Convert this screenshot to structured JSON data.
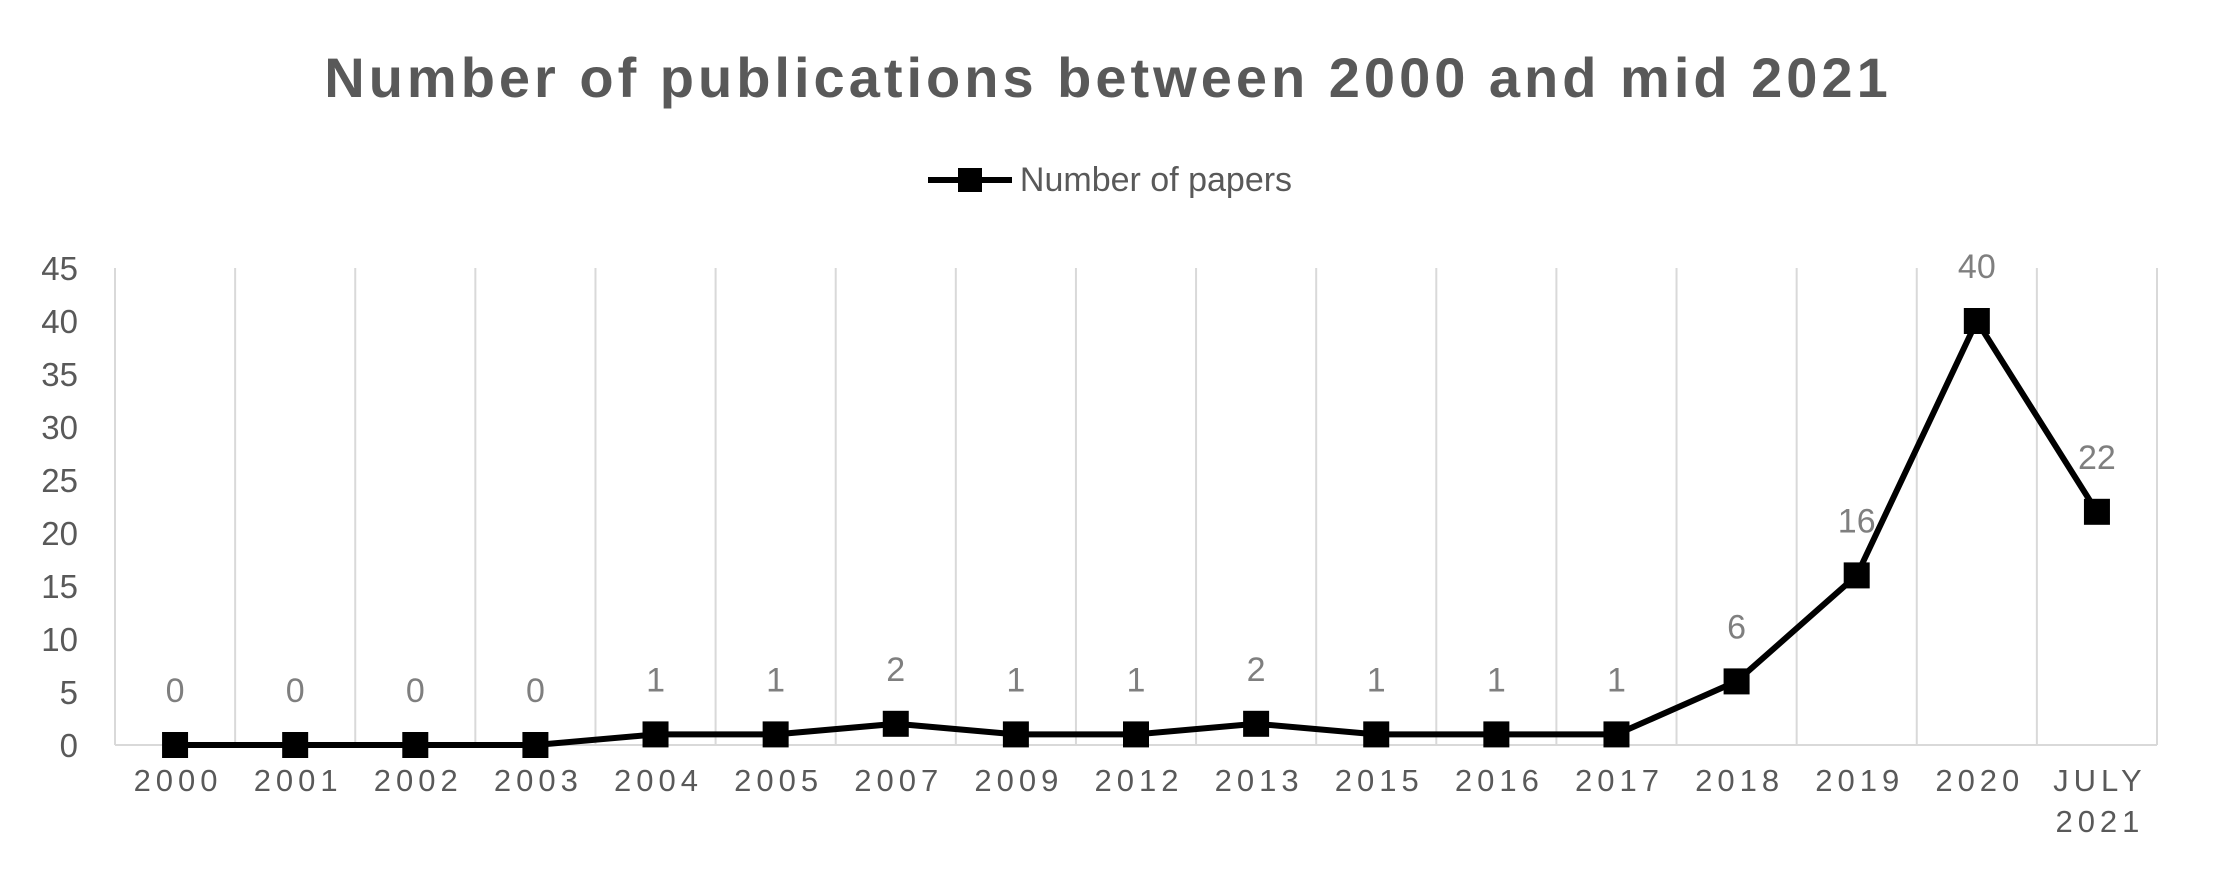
{
  "chart_data": {
    "type": "line",
    "title": "Number of publications between 2000 and mid 2021",
    "xlabel": "",
    "ylabel": "",
    "ylim": [
      0,
      45
    ],
    "yticks": [
      0,
      5,
      10,
      15,
      20,
      25,
      30,
      35,
      40,
      45
    ],
    "grid": "vertical",
    "legend_position": "top",
    "categories": [
      "2000",
      "2001",
      "2002",
      "2003",
      "2004",
      "2005",
      "2007",
      "2009",
      "2012",
      "2013",
      "2015",
      "2016",
      "2017",
      "2018",
      "2019",
      "2020",
      "JULY 2021"
    ],
    "series": [
      {
        "name": "Number of papers",
        "color": "#000000",
        "marker": "square",
        "values": [
          0,
          0,
          0,
          0,
          1,
          1,
          2,
          1,
          1,
          2,
          1,
          1,
          1,
          6,
          16,
          40,
          22
        ]
      }
    ]
  }
}
